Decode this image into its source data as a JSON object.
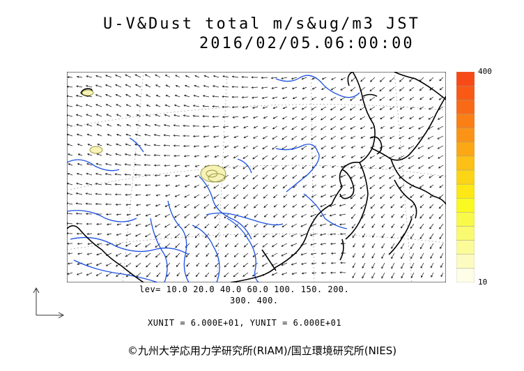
{
  "title": {
    "line1": "U-V&Dust total m/s&ug/m3 JST",
    "line2": "2016/02/05.06:00:00"
  },
  "levels": {
    "line1": "lev= 10.0 20.0 40.0 60.0 100. 150. 200.",
    "line2": "300. 400."
  },
  "units_text": "XUNIT = 6.000E+01, YUNIT = 6.000E+01",
  "colorbar": {
    "max_label": "400",
    "min_label": "10",
    "colors": [
      "#fdfde8",
      "#fcfcc0",
      "#fbfb9a",
      "#fafa70",
      "#f9f94a",
      "#fafa22",
      "#fde816",
      "#fcd516",
      "#fcc016",
      "#fca816",
      "#fb9416",
      "#fa8016",
      "#f96a16",
      "#f85a16",
      "#f84a16"
    ]
  },
  "credit": "©九州大学応用力学研究所(RIAM)/国立環境研究所(NIES)",
  "map_colors": {
    "coast": "#000000",
    "river": "#1a4fe0",
    "grid": "#888888",
    "dust": "#f7f3b8"
  }
}
